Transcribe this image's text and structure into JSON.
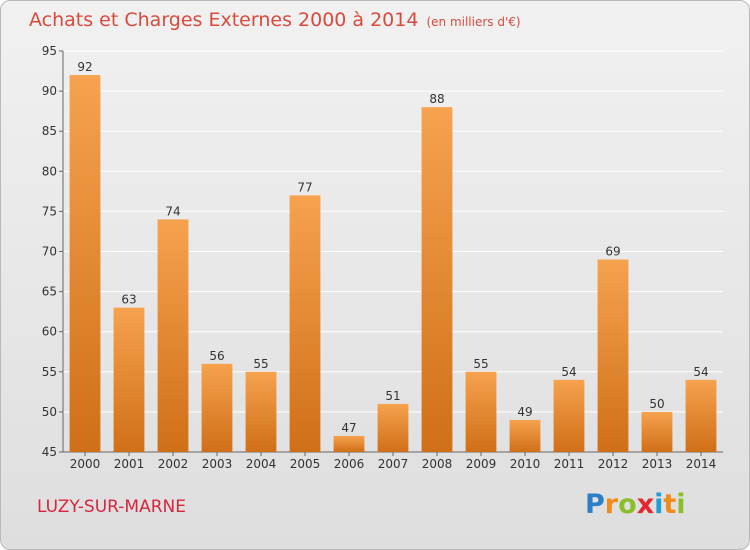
{
  "header": {
    "title": "Achats et Charges Externes 2000 à 2014",
    "unit": "(en milliers d'€)"
  },
  "footer": {
    "commune": "LUZY-SUR-MARNE",
    "logo_parts": [
      "P",
      "r",
      "o",
      "x",
      "i",
      "t",
      "i"
    ],
    "logo_colors": [
      "#2a7fc6",
      "#f08a1c",
      "#8bbf2a",
      "#e0282e",
      "#1f9fd8",
      "#f08a1c",
      "#8bbf2a"
    ]
  },
  "chart_data": {
    "type": "bar",
    "title": "Achats et Charges Externes 2000 à 2014",
    "subtitle": "(en milliers d'€)",
    "categories": [
      "2000",
      "2001",
      "2002",
      "2003",
      "2004",
      "2005",
      "2006",
      "2007",
      "2008",
      "2009",
      "2010",
      "2011",
      "2012",
      "2013",
      "2014"
    ],
    "values": [
      92,
      63,
      74,
      56,
      55,
      77,
      47,
      51,
      88,
      55,
      49,
      54,
      69,
      50,
      54
    ],
    "ylim": [
      45,
      95
    ],
    "yticks": [
      45,
      50,
      55,
      60,
      65,
      70,
      75,
      80,
      85,
      90,
      95
    ],
    "grid": true,
    "xlabel": "",
    "ylabel": "",
    "bar_color": "#f0922e",
    "bar_color_dark": "#d06f18"
  }
}
